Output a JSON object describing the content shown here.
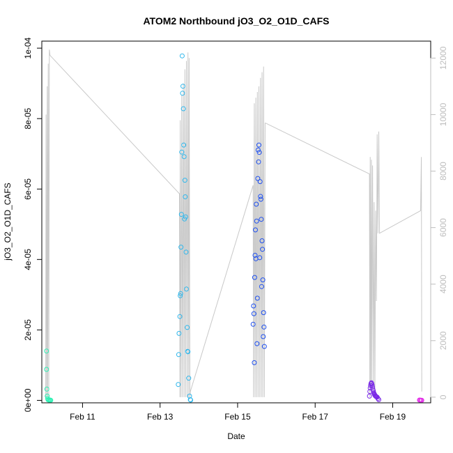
{
  "chart_data": {
    "type": "scatter",
    "title": "ATOM2 Northbound jO3_O2_O1D_CAFS",
    "xlabel": "Date",
    "ylabel": "jO3_O2_O1D_CAFS",
    "x_unit": "days since Feb 10 00:00",
    "xlim": [
      9.95,
      19.98
    ],
    "ylim": [
      -7e-07,
      0.000102
    ],
    "x_ticks": [
      {
        "value": 11,
        "label": "Feb 11"
      },
      {
        "value": 13,
        "label": "Feb 13"
      },
      {
        "value": 15,
        "label": "Feb 15"
      },
      {
        "value": 17,
        "label": "Feb 17"
      },
      {
        "value": 19,
        "label": "Feb 19"
      }
    ],
    "y_ticks": [
      {
        "value": 0,
        "label": "0e+00"
      },
      {
        "value": 2e-05,
        "label": "2e-05"
      },
      {
        "value": 4e-05,
        "label": "4e-05"
      },
      {
        "value": 6e-05,
        "label": "6e-05"
      },
      {
        "value": 8e-05,
        "label": "8e-05"
      },
      {
        "value": 0.0001,
        "label": "1e-04"
      }
    ],
    "y2lim": [
      -200,
      12600
    ],
    "y2_ticks": [
      {
        "value": 0,
        "label": "0"
      },
      {
        "value": 2000,
        "label": "2000"
      },
      {
        "value": 4000,
        "label": "4000"
      },
      {
        "value": 6000,
        "label": "6000"
      },
      {
        "value": 8000,
        "label": "8000"
      },
      {
        "value": 10000,
        "label": "10000"
      },
      {
        "value": 12000,
        "label": "12000"
      }
    ],
    "grid": false,
    "colors": {
      "altitude_line": "#c8c8c8",
      "frame": "#000000",
      "right_axis": "#bdbdbd"
    },
    "series": [
      {
        "color": "#2ef0b4",
        "points": [
          [
            10.07,
            1.4e-05
          ],
          [
            10.07,
            8.8e-06
          ],
          [
            10.08,
            3.2e-06
          ],
          [
            10.09,
            1.2e-06
          ],
          [
            10.1,
            5e-07
          ],
          [
            10.11,
            2e-07
          ],
          [
            10.13,
            1e-07
          ],
          [
            10.15,
            1e-07
          ],
          [
            10.17,
            5e-08
          ],
          [
            10.18,
            3e-08
          ]
        ]
      },
      {
        "color": "#2fb7ec",
        "points": [
          [
            13.47,
            4.5e-06
          ],
          [
            13.48,
            1.3e-05
          ],
          [
            13.49,
            1.9e-05
          ],
          [
            13.51,
            2.38e-05
          ],
          [
            13.52,
            2.97e-05
          ],
          [
            13.53,
            3.03e-05
          ],
          [
            13.54,
            4.35e-05
          ],
          [
            13.55,
            5.28e-05
          ],
          [
            13.56,
            7.05e-05
          ],
          [
            13.57,
            9.78e-05
          ],
          [
            13.58,
            8.72e-05
          ],
          [
            13.59,
            8.92e-05
          ],
          [
            13.6,
            8.28e-05
          ],
          [
            13.61,
            7.25e-05
          ],
          [
            13.62,
            6.92e-05
          ],
          [
            13.63,
            5.15e-05
          ],
          [
            13.64,
            6.25e-05
          ],
          [
            13.65,
            5.78e-05
          ],
          [
            13.66,
            5.21e-05
          ],
          [
            13.67,
            4.21e-05
          ],
          [
            13.68,
            3.16e-05
          ],
          [
            13.7,
            2.07e-05
          ],
          [
            13.71,
            1.39e-05
          ],
          [
            13.72,
            1.38e-05
          ],
          [
            13.74,
            6.3e-06
          ],
          [
            13.76,
            1.2e-06
          ],
          [
            13.78,
            2e-07
          ],
          [
            13.79,
            1e-07
          ]
        ]
      },
      {
        "color": "#1d4ff0",
        "points": [
          [
            15.4,
            2.16e-05
          ],
          [
            15.41,
            2.68e-05
          ],
          [
            15.42,
            2.46e-05
          ],
          [
            15.43,
            1.07e-05
          ],
          [
            15.44,
            3.49e-05
          ],
          [
            15.45,
            4.12e-05
          ],
          [
            15.46,
            4.84e-05
          ],
          [
            15.47,
            4.02e-05
          ],
          [
            15.48,
            5.57e-05
          ],
          [
            15.49,
            5.09e-05
          ],
          [
            15.5,
            1.61e-05
          ],
          [
            15.51,
            2.9e-05
          ],
          [
            15.52,
            6.3e-05
          ],
          [
            15.53,
            7.11e-05
          ],
          [
            15.54,
            6.77e-05
          ],
          [
            15.55,
            7.25e-05
          ],
          [
            15.56,
            7.04e-05
          ],
          [
            15.57,
            4.05e-05
          ],
          [
            15.58,
            6.21e-05
          ],
          [
            15.59,
            5.79e-05
          ],
          [
            15.6,
            5.71e-05
          ],
          [
            15.61,
            5.14e-05
          ],
          [
            15.62,
            3.23e-05
          ],
          [
            15.63,
            4.53e-05
          ],
          [
            15.64,
            4.29e-05
          ],
          [
            15.65,
            3.42e-05
          ],
          [
            15.66,
            1.81e-05
          ],
          [
            15.67,
            2.49e-05
          ],
          [
            15.68,
            2.08e-05
          ],
          [
            15.69,
            1.53e-05
          ]
        ]
      },
      {
        "color": "#7a2ae6",
        "points": [
          [
            18.4,
            1.2e-06
          ],
          [
            18.41,
            2.5e-06
          ],
          [
            18.42,
            3.5e-06
          ],
          [
            18.43,
            4.2e-06
          ],
          [
            18.44,
            4.7e-06
          ],
          [
            18.45,
            5e-06
          ],
          [
            18.46,
            4.8e-06
          ],
          [
            18.47,
            4.3e-06
          ],
          [
            18.48,
            3.7e-06
          ],
          [
            18.49,
            3.1e-06
          ],
          [
            18.5,
            2.7e-06
          ],
          [
            18.51,
            2.2e-06
          ],
          [
            18.52,
            1.9e-06
          ],
          [
            18.53,
            1.7e-06
          ],
          [
            18.54,
            1.5e-06
          ],
          [
            18.55,
            1.3e-06
          ],
          [
            18.56,
            1.2e-06
          ],
          [
            18.57,
            1.1e-06
          ],
          [
            18.58,
            1e-06
          ],
          [
            18.6,
            9e-07
          ],
          [
            18.62,
            5e-07
          ],
          [
            18.64,
            2e-07
          ]
        ]
      },
      {
        "color": "#e22ce6",
        "points": [
          [
            19.69,
            1e-07
          ],
          [
            19.71,
            5e-08
          ],
          [
            19.73,
            3e-08
          ],
          [
            19.75,
            2e-08
          ]
        ]
      }
    ],
    "altitude": [
      [
        10.05,
        0
      ],
      [
        10.06,
        10000
      ],
      [
        10.075,
        0
      ],
      [
        10.09,
        11000
      ],
      [
        10.1,
        0
      ],
      [
        10.115,
        11800
      ],
      [
        10.13,
        0
      ],
      [
        10.145,
        12300
      ],
      [
        10.16,
        12100
      ],
      [
        13.5,
        7200
      ],
      [
        13.51,
        0
      ],
      [
        13.52,
        9800
      ],
      [
        13.54,
        0
      ],
      [
        13.56,
        10700
      ],
      [
        13.58,
        0
      ],
      [
        13.6,
        11100
      ],
      [
        13.62,
        0
      ],
      [
        13.64,
        11600
      ],
      [
        13.66,
        0
      ],
      [
        13.68,
        11900
      ],
      [
        13.7,
        0
      ],
      [
        13.72,
        12200
      ],
      [
        13.74,
        0
      ],
      [
        13.75,
        12000
      ],
      [
        13.77,
        0
      ],
      [
        13.78,
        200
      ],
      [
        15.4,
        7500
      ],
      [
        15.41,
        0
      ],
      [
        15.43,
        10400
      ],
      [
        15.45,
        0
      ],
      [
        15.47,
        10600
      ],
      [
        15.49,
        0
      ],
      [
        15.51,
        10800
      ],
      [
        15.53,
        0
      ],
      [
        15.55,
        11000
      ],
      [
        15.57,
        0
      ],
      [
        15.59,
        11300
      ],
      [
        15.61,
        0
      ],
      [
        15.63,
        11500
      ],
      [
        15.65,
        0
      ],
      [
        15.67,
        11700
      ],
      [
        15.69,
        0
      ],
      [
        15.71,
        9700
      ],
      [
        15.72,
        9700
      ],
      [
        18.4,
        7900
      ],
      [
        18.41,
        0
      ],
      [
        18.42,
        8500
      ],
      [
        18.43,
        400
      ],
      [
        18.45,
        8400
      ],
      [
        18.46,
        400
      ],
      [
        18.48,
        8200
      ],
      [
        18.5,
        300
      ],
      [
        18.52,
        6900
      ],
      [
        18.54,
        200
      ],
      [
        18.56,
        6600
      ],
      [
        18.58,
        3400
      ],
      [
        18.6,
        9300
      ],
      [
        18.62,
        5800
      ],
      [
        18.64,
        9400
      ],
      [
        18.66,
        5800
      ],
      [
        19.72,
        6600
      ],
      [
        19.74,
        8500
      ],
      [
        19.75,
        200
      ]
    ]
  }
}
